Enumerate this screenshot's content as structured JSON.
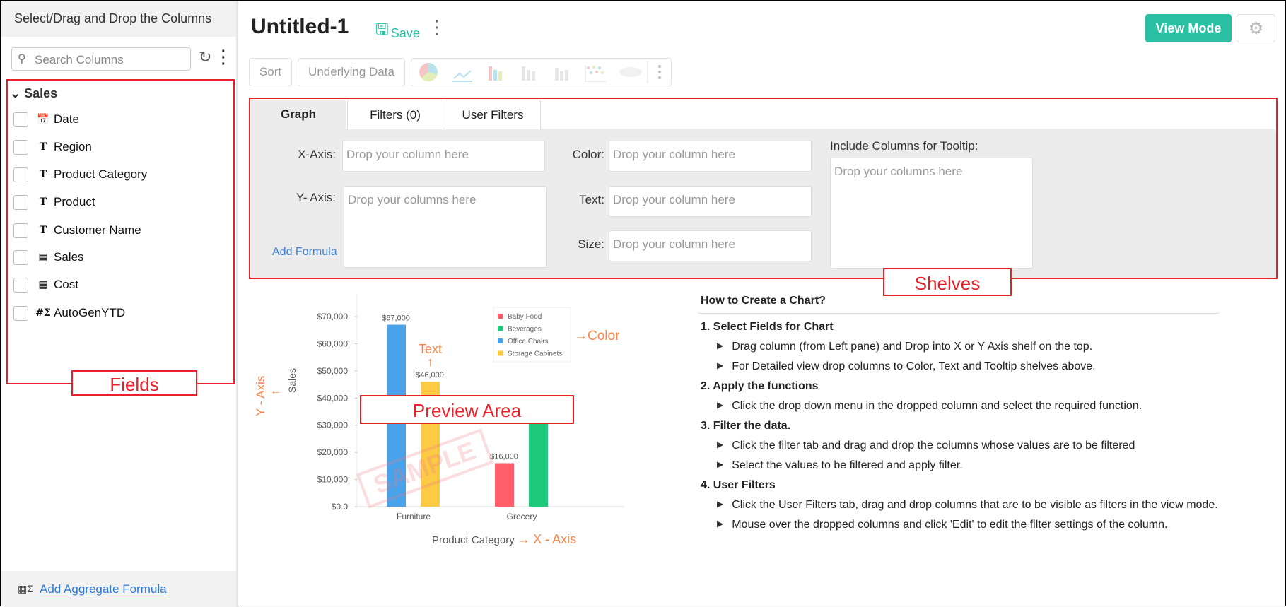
{
  "left_panel": {
    "title": "Select/Drag and Drop the Columns",
    "search_placeholder": "Search Columns",
    "group": "Sales",
    "fields": [
      {
        "label": "Date",
        "icon": "calendar-icon"
      },
      {
        "label": "Region",
        "icon": "text-type-icon"
      },
      {
        "label": "Product Category",
        "icon": "text-type-icon"
      },
      {
        "label": "Product",
        "icon": "text-type-icon"
      },
      {
        "label": "Customer Name",
        "icon": "text-type-icon"
      },
      {
        "label": "Sales",
        "icon": "currency-icon"
      },
      {
        "label": "Cost",
        "icon": "currency-icon"
      },
      {
        "label": "AutoGenYTD",
        "icon": "formula-icon"
      }
    ],
    "annotation": "Fields",
    "add_aggregate": "Add Aggregate Formula"
  },
  "header": {
    "title": "Untitled-1",
    "save": "Save",
    "view_mode": "View Mode"
  },
  "toolbar": {
    "sort": "Sort",
    "underlying": "Underlying Data"
  },
  "shelves": {
    "tabs": [
      "Graph",
      "Filters (0)",
      "User Filters"
    ],
    "x_label": "X-Axis:",
    "y_label": "Y- Axis:",
    "drop_column": "Drop your column here",
    "drop_columns": "Drop your columns here",
    "add_formula": "Add Formula",
    "color_label": "Color:",
    "text_label": "Text:",
    "size_label": "Size:",
    "tooltip_label": "Include Columns for Tooltip:",
    "annotation": "Shelves"
  },
  "preview": {
    "annotation": "Preview Area",
    "watermark": "SAMPLE",
    "y_annot": "Y - Axis",
    "x_annot": "X - Axis",
    "color_annot": "Color",
    "text_annot": "Text"
  },
  "chart_data": {
    "type": "bar",
    "categories": [
      "Furniture",
      "Grocery"
    ],
    "xlabel": "Product Category",
    "ylabel": "Sales",
    "ylim": [
      0,
      70000
    ],
    "yticks": [
      "$0.0",
      "$10,000",
      "$20,000",
      "$30,000",
      "$40,000",
      "$50,000",
      "$60,000",
      "$70,000"
    ],
    "legend": [
      "Baby Food",
      "Beverages",
      "Office Chairs",
      "Storage Cabinets"
    ],
    "legend_colors": [
      "#fe5f6b",
      "#1ec97c",
      "#49a3ea",
      "#fdca46"
    ],
    "bars": [
      {
        "category": "Furniture",
        "series": "Office Chairs",
        "value": 67000,
        "label": "$67,000"
      },
      {
        "category": "Furniture",
        "series": "Storage Cabinets",
        "value": 46000,
        "label": "$46,000"
      },
      {
        "category": "Grocery",
        "series": "Baby Food",
        "value": 16000,
        "label": "$16,000"
      },
      {
        "category": "Grocery",
        "series": "Beverages",
        "value": 31000,
        "label": ""
      }
    ]
  },
  "help": {
    "title": "How to Create a Chart?",
    "sections": [
      {
        "heading": "1. Select Fields for Chart",
        "items": [
          "Drag column (from Left pane) and Drop into X or Y Axis shelf on the top.",
          "For Detailed view drop columns to Color, Text and Tooltip shelves above."
        ]
      },
      {
        "heading": "2. Apply the functions",
        "items": [
          "Click the drop down menu in the dropped column and select the required function."
        ]
      },
      {
        "heading": "3. Filter the data.",
        "items": [
          "Click the filter tab and drag and drop the columns whose values are to be filtered",
          "Select the values to be filtered and apply filter."
        ]
      },
      {
        "heading": "4. User Filters",
        "items": [
          "Click the User Filters tab, drag and drop columns that are to be visible as filters in the view mode.",
          "Mouse over the dropped columns and click 'Edit' to edit the filter settings of the column."
        ]
      }
    ]
  },
  "colors": {
    "accent": "#2bc0a4",
    "annotation": "#e8202a",
    "annot_orange": "#f7864a"
  }
}
